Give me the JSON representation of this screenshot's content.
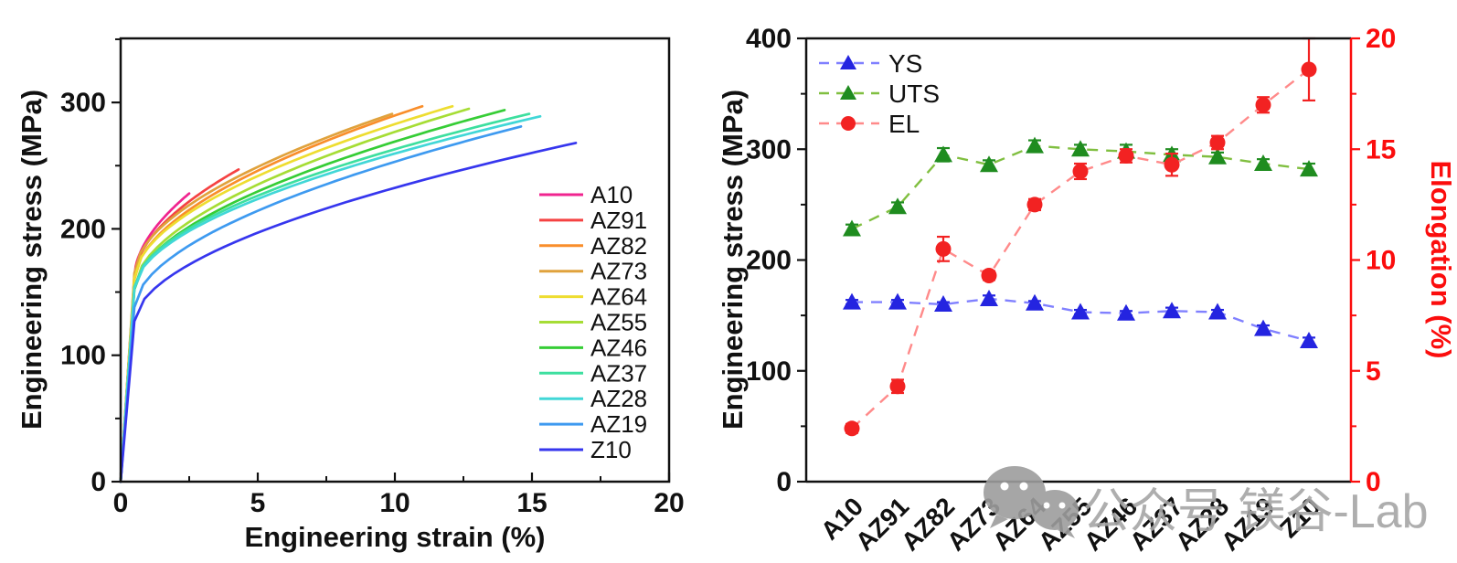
{
  "figure": {
    "background": "#ffffff",
    "watermark": {
      "icon": "wechat-icon",
      "icon_color": "#9d9d9d",
      "text": "公众号 镁谷-Lab",
      "text_color": "#a6a6a6"
    }
  },
  "chart_data": [
    {
      "id": "stress-strain",
      "type": "line",
      "title": "",
      "xlabel": "Engineering strain (%)",
      "ylabel": "Engineering stress (MPa)",
      "xlim": [
        0,
        20
      ],
      "ylim": [
        0,
        350
      ],
      "xticks": [
        0,
        5,
        10,
        15,
        20
      ],
      "yticks": [
        0,
        100,
        200,
        300
      ],
      "xticks_minor": [
        2.5,
        7.5,
        12.5,
        17.5
      ],
      "yticks_minor": [
        50,
        150,
        250,
        350
      ],
      "grid": false,
      "legend_position": "inside-right",
      "series": [
        {
          "name": "A10",
          "color": "#f0248f",
          "yield_stress": 162,
          "end_strain": 2.5,
          "end_stress": 228
        },
        {
          "name": "AZ91",
          "color": "#f54242",
          "yield_stress": 162,
          "end_strain": 4.3,
          "end_stress": 247
        },
        {
          "name": "AZ82",
          "color": "#f98e2b",
          "yield_stress": 160,
          "end_strain": 11.0,
          "end_stress": 297
        },
        {
          "name": "AZ73",
          "color": "#e0a23c",
          "yield_stress": 165,
          "end_strain": 9.9,
          "end_stress": 291
        },
        {
          "name": "AZ64",
          "color": "#eedd30",
          "yield_stress": 161,
          "end_strain": 12.1,
          "end_stress": 297
        },
        {
          "name": "AZ55",
          "color": "#a6dd35",
          "yield_stress": 153,
          "end_strain": 12.7,
          "end_stress": 295
        },
        {
          "name": "AZ46",
          "color": "#36cd36",
          "yield_stress": 152,
          "end_strain": 14.0,
          "end_stress": 294
        },
        {
          "name": "AZ37",
          "color": "#3ddf9f",
          "yield_stress": 154,
          "end_strain": 14.9,
          "end_stress": 291
        },
        {
          "name": "AZ28",
          "color": "#41d7d7",
          "yield_stress": 153,
          "end_strain": 15.3,
          "end_stress": 289
        },
        {
          "name": "AZ19",
          "color": "#3e9af0",
          "yield_stress": 138,
          "end_strain": 14.6,
          "end_stress": 281
        },
        {
          "name": "Z10",
          "color": "#3636ee",
          "yield_stress": 127,
          "end_strain": 16.6,
          "end_stress": 268
        }
      ]
    },
    {
      "id": "properties",
      "type": "line",
      "title": "",
      "categories": [
        "A10",
        "AZ91",
        "AZ82",
        "AZ73",
        "AZ64",
        "AZ55",
        "AZ46",
        "AZ37",
        "AZ28",
        "AZ19",
        "Z10"
      ],
      "ylabel_left": "Engineering stress (MPa)",
      "ylabel_right": "Elongation (%)",
      "ylim_left": [
        0,
        400
      ],
      "ylim_right": [
        0,
        20
      ],
      "yticks_left": [
        0,
        100,
        200,
        300,
        400
      ],
      "yticks_right": [
        0,
        5,
        10,
        15,
        20
      ],
      "yticks_left_minor": [
        50,
        150,
        250,
        350
      ],
      "yticks_right_minor": [
        2.5,
        7.5,
        12.5,
        17.5
      ],
      "right_axis_color": "#fb0d0d",
      "grid": false,
      "legend_position": "inside-top-left",
      "series": [
        {
          "name": "YS",
          "axis": "left",
          "marker": "triangle",
          "marker_color": "#2424e0",
          "line_color": "#8080ff",
          "values": [
            162,
            162,
            160,
            165,
            161,
            153,
            152,
            154,
            153,
            138,
            127
          ],
          "errors": [
            2,
            2,
            2,
            3,
            2,
            2,
            2,
            3,
            2,
            3,
            3
          ]
        },
        {
          "name": "UTS",
          "axis": "left",
          "marker": "triangle",
          "marker_color": "#1f8c1f",
          "line_color": "#80bf40",
          "values": [
            228,
            248,
            295,
            286,
            303,
            300,
            298,
            295,
            293,
            287,
            282
          ],
          "errors": [
            4,
            4,
            6,
            4,
            5,
            4,
            6,
            5,
            4,
            4,
            5
          ]
        },
        {
          "name": "EL",
          "axis": "right",
          "marker": "circle",
          "marker_color": "#f22222",
          "line_color": "#ff8a8a",
          "values": [
            2.4,
            4.3,
            10.5,
            9.3,
            12.5,
            14.0,
            14.7,
            14.3,
            15.3,
            17.0,
            18.6
          ],
          "errors": [
            0.2,
            0.3,
            0.55,
            0.2,
            0.25,
            0.35,
            0.3,
            0.5,
            0.3,
            0.35,
            1.4
          ]
        }
      ]
    }
  ]
}
